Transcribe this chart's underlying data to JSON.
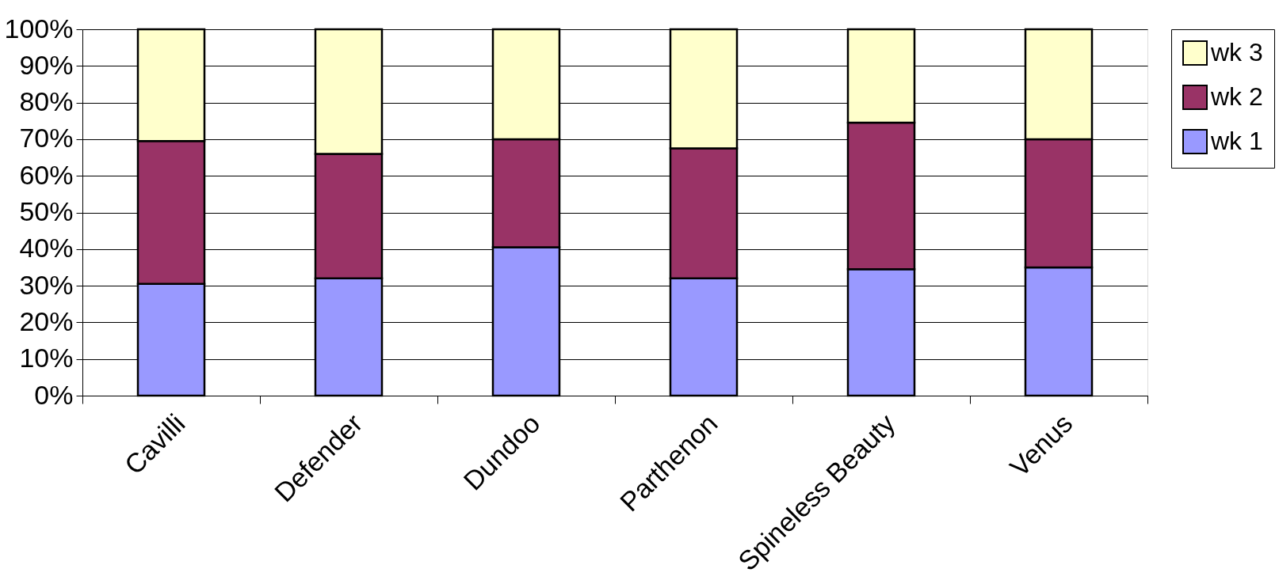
{
  "chart_data": {
    "type": "bar",
    "stacked": true,
    "categories": [
      "Cavilli",
      "Defender",
      "Dundoo",
      "Parthenon",
      "Spineless Beauty",
      "Venus"
    ],
    "series": [
      {
        "name": "wk 1",
        "color": "#9999ff",
        "values": [
          30.5,
          32,
          40.5,
          32,
          34.5,
          35
        ]
      },
      {
        "name": "wk 2",
        "color": "#993366",
        "values": [
          39,
          34,
          29.5,
          35.5,
          40,
          35
        ]
      },
      {
        "name": "wk 3",
        "color": "#ffffcc",
        "values": [
          30.5,
          34,
          30,
          32.5,
          25.5,
          30
        ]
      }
    ],
    "ylim": [
      0,
      100
    ],
    "yticks": [
      {
        "value": 0,
        "label": "0%"
      },
      {
        "value": 10,
        "label": "10%"
      },
      {
        "value": 20,
        "label": "20%"
      },
      {
        "value": 30,
        "label": "30%"
      },
      {
        "value": 40,
        "label": "40%"
      },
      {
        "value": 50,
        "label": "50%"
      },
      {
        "value": 60,
        "label": "60%"
      },
      {
        "value": 70,
        "label": "70%"
      },
      {
        "value": 80,
        "label": "80%"
      },
      {
        "value": 90,
        "label": "90%"
      },
      {
        "value": 100,
        "label": "100%"
      }
    ],
    "grid": "y",
    "legend": "right"
  }
}
